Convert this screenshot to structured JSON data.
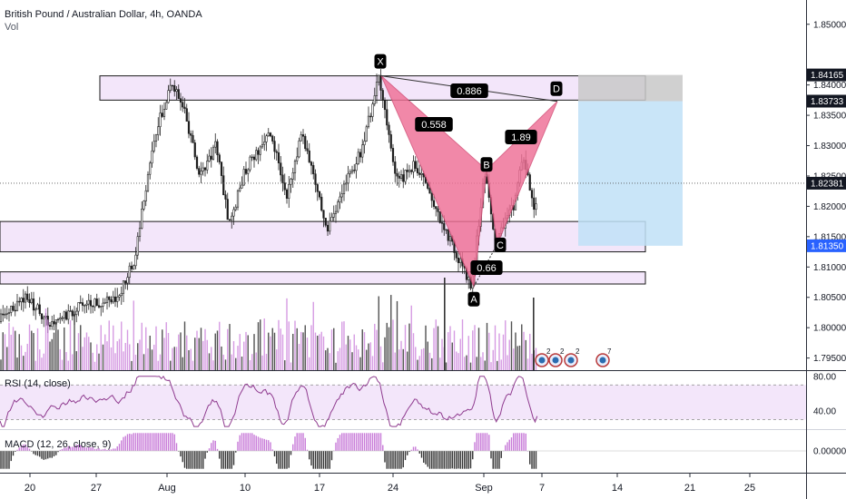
{
  "header": {
    "title": "British Pound / Australian Dollar, 4h, OANDA",
    "volume_label": "Vol"
  },
  "indicators": {
    "rsi_label": "RSI (14, close)",
    "macd_label": "MACD (12, 26, close, 9)"
  },
  "colors": {
    "up": "#4a4a4a",
    "down": "#1a1a1a",
    "vol": "#c87ad8",
    "vol_dark": "#333333",
    "harmonic_fill": "#ef6f95",
    "zone_fill": "#f3e6fa",
    "target_fill": "#bfe0f7",
    "stop_fill": "#c8c8c8",
    "rsi_line": "#8f3b8f",
    "rsi_band": "#f3e6fa",
    "label_bg": "#000000",
    "label_text": "#ffffff"
  },
  "chart_data": [
    {
      "type": "candlestick",
      "title": "British Pound / Australian Dollar, 4h, OANDA",
      "x_ticks": [
        "20",
        "27",
        "Aug",
        "10",
        "17",
        "24",
        "Sep",
        "7",
        "14",
        "21",
        "25"
      ],
      "y_ticks": [
        "1.85000",
        "1.84000",
        "1.83500",
        "1.83000",
        "1.82500",
        "1.82000",
        "1.81500",
        "1.81000",
        "1.80500",
        "1.80000",
        "1.79500"
      ],
      "ylim": [
        1.793,
        1.854
      ],
      "price_labels": [
        {
          "value": 1.84165,
          "text": "1.84165",
          "style": "dark"
        },
        {
          "value": 1.83733,
          "text": "1.83733",
          "style": "dark"
        },
        {
          "value": 1.82381,
          "text": "1.82381",
          "style": "dark"
        },
        {
          "value": 1.8135,
          "text": "1.81350",
          "style": "blue"
        }
      ],
      "last_price": 1.82381,
      "harmonic_pattern": {
        "points": [
          {
            "label": "X",
            "price": 1.8415
          },
          {
            "label": "A",
            "price": 1.8068
          },
          {
            "label": "B",
            "price": 1.826
          },
          {
            "label": "C",
            "price": 1.8138
          },
          {
            "label": "D",
            "price": 1.8373
          }
        ],
        "ratios": [
          {
            "value": "0.558",
            "between": "XA-AB"
          },
          {
            "value": "0.886",
            "between": "XD"
          },
          {
            "value": "0.66",
            "between": "AB-BC"
          },
          {
            "value": "1.89",
            "between": "BC-CD"
          }
        ]
      },
      "zones": [
        {
          "top": 1.8415,
          "bottom": 1.8375
        },
        {
          "top": 1.8175,
          "bottom": 1.8125
        },
        {
          "top": 1.8092,
          "bottom": 1.8072
        }
      ],
      "position": {
        "entry": 1.83733,
        "stop": 1.84165,
        "target": 1.8135
      },
      "event_badges": [
        "2",
        "2",
        "2",
        "7"
      ]
    },
    {
      "type": "line",
      "name": "RSI",
      "y_ticks": [
        "80.00",
        "40.00"
      ],
      "ylim": [
        20,
        85
      ],
      "band": [
        30,
        70
      ]
    },
    {
      "type": "bar",
      "name": "MACD",
      "y_ticks": [
        "0.00000"
      ],
      "ylim": [
        -0.0035,
        0.0035
      ]
    }
  ]
}
